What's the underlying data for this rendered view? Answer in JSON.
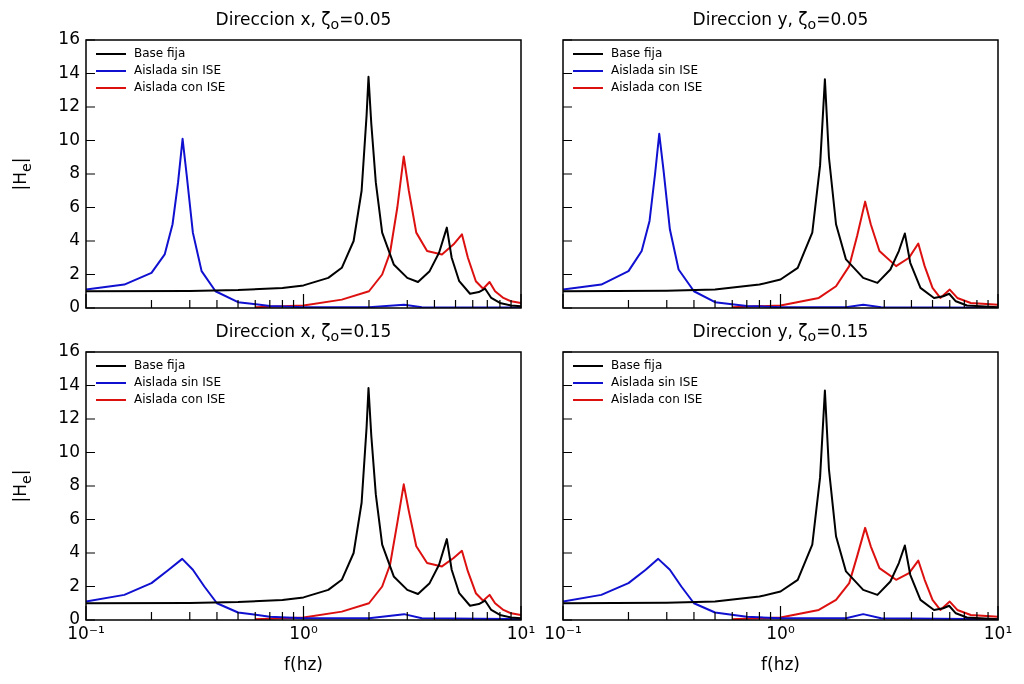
{
  "chart_data": [
    {
      "type": "line",
      "title": "Direccion x, ζ$_{o}$=0.05",
      "ylabel": "|H$_{e}$|",
      "log": "x",
      "xlim": [
        0.1,
        10
      ],
      "ylim": [
        0,
        16
      ],
      "xticks": [
        {
          "value": 0.1,
          "label": null
        },
        {
          "value": 1,
          "label": null
        },
        {
          "value": 10,
          "label": null
        }
      ],
      "yticks": [
        0,
        2,
        4,
        6,
        8,
        10,
        12,
        14,
        16
      ],
      "tick_labels": "y",
      "legend": "top left",
      "marker": "none",
      "line_style": "solid",
      "series": [
        {
          "name": "Base fija",
          "color": "#000000",
          "x": [
            0.1,
            0.3,
            0.5,
            0.8,
            1.0,
            1.3,
            1.5,
            1.7,
            1.85,
            1.95,
            1.99,
            2.05,
            2.15,
            2.3,
            2.6,
            3.0,
            3.36,
            3.8,
            4.2,
            4.56,
            4.8,
            5.2,
            5.83,
            6.4,
            6.84,
            7.3,
            8.0,
            9.0,
            10
          ],
          "values": [
            1.0,
            1.02,
            1.07,
            1.2,
            1.35,
            1.8,
            2.4,
            4.0,
            7.0,
            11.5,
            13.8,
            11,
            7.5,
            4.5,
            2.6,
            1.8,
            1.55,
            2.2,
            3.3,
            4.8,
            3.0,
            1.6,
            0.85,
            0.95,
            1.15,
            0.6,
            0.3,
            0.15,
            0.1
          ]
        },
        {
          "name": "Aislada sin ISE",
          "color": "#1010d0",
          "x": [
            0.1,
            0.15,
            0.2,
            0.23,
            0.25,
            0.265,
            0.278,
            0.29,
            0.31,
            0.34,
            0.394,
            0.5,
            0.7,
            1.0,
            2.0,
            2.9,
            3.5,
            10
          ],
          "values": [
            1.1,
            1.4,
            2.1,
            3.2,
            5,
            7.5,
            10.1,
            8,
            4.5,
            2.2,
            1.0,
            0.35,
            0.12,
            0.05,
            0.05,
            0.2,
            0.05,
            0.02
          ]
        },
        {
          "name": "Aislada con ISE",
          "color": "#dd1010",
          "x": [
            0.6,
            1.0,
            1.5,
            2.0,
            2.3,
            2.5,
            2.7,
            2.89,
            3.05,
            3.3,
            3.7,
            4.33,
            4.9,
            5.35,
            5.7,
            6.2,
            6.7,
            7.17,
            7.6,
            8.3,
            9,
            10
          ],
          "values": [
            0.05,
            0.15,
            0.5,
            1.0,
            2.0,
            3.3,
            6.0,
            9.05,
            7.0,
            4.5,
            3.4,
            3.2,
            3.8,
            4.4,
            3.0,
            1.6,
            1.15,
            1.55,
            1.0,
            0.6,
            0.4,
            0.3
          ]
        }
      ]
    },
    {
      "type": "line",
      "title": "Direccion y, ζ$_{o}$=0.05",
      "log": "x",
      "xlim": [
        0.1,
        10
      ],
      "ylim": [
        0,
        16
      ],
      "xticks": [
        {
          "value": 0.1,
          "label": null
        },
        {
          "value": 1,
          "label": null
        },
        {
          "value": 10,
          "label": null
        }
      ],
      "yticks": [
        0,
        2,
        4,
        6,
        8,
        10,
        12,
        14,
        16
      ],
      "tick_labels": false,
      "legend": "top left",
      "marker": "none",
      "line_style": "solid",
      "series": [
        {
          "name": "Base fija",
          "color": "#000000",
          "x": [
            0.1,
            0.3,
            0.5,
            0.8,
            1.0,
            1.2,
            1.4,
            1.52,
            1.6,
            1.67,
            1.8,
            2.0,
            2.4,
            2.79,
            3.2,
            3.5,
            3.73,
            3.95,
            4.4,
            5.08,
            5.6,
            5.96,
            6.4,
            7.2,
            10
          ],
          "values": [
            1.0,
            1.03,
            1.1,
            1.4,
            1.7,
            2.4,
            4.5,
            8.5,
            13.65,
            9,
            5,
            2.9,
            1.8,
            1.5,
            2.3,
            3.4,
            4.45,
            2.7,
            1.2,
            0.6,
            0.7,
            0.85,
            0.4,
            0.15,
            0.05
          ]
        },
        {
          "name": "Aislada sin ISE",
          "color": "#1010d0",
          "x": [
            0.1,
            0.15,
            0.2,
            0.23,
            0.25,
            0.265,
            0.277,
            0.29,
            0.31,
            0.34,
            0.4,
            0.5,
            0.7,
            1.0,
            2.0,
            2.4,
            2.9,
            10
          ],
          "values": [
            1.1,
            1.4,
            2.2,
            3.4,
            5.2,
            8,
            10.4,
            8.2,
            4.7,
            2.3,
            1.0,
            0.35,
            0.12,
            0.05,
            0.05,
            0.2,
            0.05,
            0.02
          ]
        },
        {
          "name": "Aislada con ISE",
          "color": "#dd1010",
          "x": [
            0.6,
            1.0,
            1.5,
            1.8,
            2.07,
            2.25,
            2.45,
            2.6,
            2.85,
            3.4,
            3.9,
            4.3,
            4.6,
            5.0,
            5.43,
            6.0,
            6.5,
            7.5,
            10
          ],
          "values": [
            0.05,
            0.15,
            0.6,
            1.3,
            2.5,
            4.3,
            6.35,
            5,
            3.4,
            2.5,
            3.0,
            3.85,
            2.5,
            1.2,
            0.6,
            1.1,
            0.6,
            0.3,
            0.2
          ]
        }
      ]
    },
    {
      "type": "line",
      "title": "Direccion x, ζ$_{o}$=0.15",
      "xlabel": "f(hz)",
      "ylabel": "|H$_{e}$|",
      "log": "x",
      "xlim": [
        0.1,
        10
      ],
      "ylim": [
        0,
        16
      ],
      "xticks": [
        {
          "value": 0.1,
          "label": "10⁻¹"
        },
        {
          "value": 1,
          "label": "10⁰"
        },
        {
          "value": 10,
          "label": "10¹"
        }
      ],
      "yticks": [
        0,
        2,
        4,
        6,
        8,
        10,
        12,
        14,
        16
      ],
      "legend": "top left",
      "marker": "none",
      "line_style": "solid",
      "series": [
        {
          "name": "Base fija",
          "color": "#000000",
          "x": [
            0.1,
            0.3,
            0.5,
            0.8,
            1.0,
            1.3,
            1.5,
            1.7,
            1.85,
            1.95,
            1.99,
            2.05,
            2.15,
            2.3,
            2.6,
            3.0,
            3.36,
            3.8,
            4.2,
            4.56,
            4.8,
            5.2,
            5.83,
            6.4,
            6.84,
            7.3,
            8.0,
            9.0,
            10
          ],
          "values": [
            1.0,
            1.02,
            1.07,
            1.2,
            1.35,
            1.8,
            2.4,
            4.0,
            7.0,
            11.5,
            13.85,
            11,
            7.5,
            4.5,
            2.6,
            1.8,
            1.55,
            2.2,
            3.3,
            4.83,
            3.0,
            1.6,
            0.85,
            0.95,
            1.15,
            0.6,
            0.3,
            0.15,
            0.1
          ]
        },
        {
          "name": "Aislada sin ISE",
          "color": "#1010d0",
          "x": [
            0.1,
            0.15,
            0.2,
            0.24,
            0.277,
            0.31,
            0.35,
            0.4,
            0.5,
            0.7,
            1.0,
            2.0,
            2.9,
            3.5,
            10
          ],
          "values": [
            1.1,
            1.5,
            2.2,
            3.0,
            3.65,
            3.0,
            2.0,
            1.0,
            0.45,
            0.2,
            0.1,
            0.1,
            0.35,
            0.1,
            0.05
          ]
        },
        {
          "name": "Aislada con ISE",
          "color": "#dd1010",
          "x": [
            0.6,
            1.0,
            1.5,
            2.0,
            2.3,
            2.5,
            2.7,
            2.89,
            3.05,
            3.3,
            3.7,
            4.33,
            4.9,
            5.35,
            5.7,
            6.2,
            6.7,
            7.17,
            7.6,
            8.3,
            9,
            10
          ],
          "values": [
            0.05,
            0.15,
            0.5,
            1.0,
            2.0,
            3.3,
            5.8,
            8.1,
            6.5,
            4.4,
            3.4,
            3.2,
            3.7,
            4.13,
            2.9,
            1.6,
            1.15,
            1.5,
            1.0,
            0.6,
            0.4,
            0.3
          ]
        }
      ]
    },
    {
      "type": "line",
      "title": "Direccion y, ζ$_{o}$=0.15",
      "xlabel": "f(hz)",
      "log": "x",
      "xlim": [
        0.1,
        10
      ],
      "ylim": [
        0,
        16
      ],
      "xticks": [
        {
          "value": 0.1,
          "label": "10⁻¹"
        },
        {
          "value": 1,
          "label": "10⁰"
        },
        {
          "value": 10,
          "label": "10¹"
        }
      ],
      "yticks": [
        0,
        2,
        4,
        6,
        8,
        10,
        12,
        14,
        16
      ],
      "tick_labels": "x",
      "legend": "top left",
      "marker": "none",
      "line_style": "solid",
      "series": [
        {
          "name": "Base fija",
          "color": "#000000",
          "x": [
            0.1,
            0.3,
            0.5,
            0.8,
            1.0,
            1.2,
            1.4,
            1.52,
            1.6,
            1.67,
            1.8,
            2.0,
            2.4,
            2.79,
            3.2,
            3.5,
            3.73,
            3.95,
            4.4,
            5.08,
            5.6,
            5.96,
            6.4,
            7.2,
            10
          ],
          "values": [
            1.0,
            1.03,
            1.1,
            1.4,
            1.7,
            2.4,
            4.5,
            8.5,
            13.7,
            9,
            5,
            2.9,
            1.8,
            1.5,
            2.3,
            3.4,
            4.45,
            2.7,
            1.2,
            0.6,
            0.7,
            0.85,
            0.4,
            0.15,
            0.05
          ]
        },
        {
          "name": "Aislada sin ISE",
          "color": "#1010d0",
          "x": [
            0.1,
            0.15,
            0.2,
            0.24,
            0.274,
            0.31,
            0.35,
            0.4,
            0.5,
            0.7,
            1.0,
            2.0,
            2.4,
            2.9,
            10
          ],
          "values": [
            1.1,
            1.5,
            2.2,
            3.0,
            3.65,
            3.0,
            2.0,
            1.0,
            0.45,
            0.2,
            0.1,
            0.1,
            0.35,
            0.1,
            0.05
          ]
        },
        {
          "name": "Aislada con ISE",
          "color": "#dd1010",
          "x": [
            0.6,
            1.0,
            1.5,
            1.8,
            2.07,
            2.25,
            2.45,
            2.6,
            2.85,
            3.4,
            3.9,
            4.3,
            4.6,
            5.0,
            5.43,
            6.0,
            6.5,
            7.5,
            10
          ],
          "values": [
            0.05,
            0.15,
            0.6,
            1.2,
            2.2,
            3.8,
            5.5,
            4.4,
            3.1,
            2.4,
            2.8,
            3.55,
            2.4,
            1.2,
            0.6,
            1.1,
            0.6,
            0.3,
            0.2
          ]
        }
      ]
    }
  ]
}
